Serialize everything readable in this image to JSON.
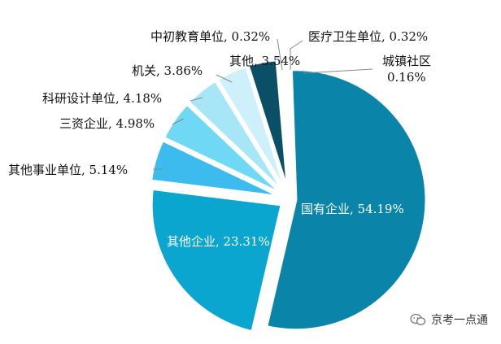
{
  "chart_data": {
    "type": "pie",
    "title": "",
    "slices": [
      {
        "label": "国有企业",
        "value": 54.19,
        "display": "国有企业, 54.19%",
        "color": "#0a84a8"
      },
      {
        "label": "其他企业",
        "value": 23.31,
        "display": "其他企业, 23.31%",
        "color": "#0aa6cf"
      },
      {
        "label": "其他事业单位",
        "value": 5.14,
        "display": "其他事业单位, 5.14%",
        "color": "#3cbbef"
      },
      {
        "label": "三资企业",
        "value": 4.98,
        "display": "三资企业, 4.98%",
        "color": "#6fd8f5"
      },
      {
        "label": "科研设计单位",
        "value": 4.18,
        "display": "科研设计单位, 4.18%",
        "color": "#a6e6f7"
      },
      {
        "label": "机关",
        "value": 3.86,
        "display": "机关, 3.86%",
        "color": "#cdf0fb"
      },
      {
        "label": "其他",
        "value": 3.54,
        "display": "其他, 3.54%",
        "color": "#0a4f66"
      },
      {
        "label": "中初教育单位",
        "value": 0.32,
        "display": "中初教育单位, 0.32%",
        "color": "#0c2f3d"
      },
      {
        "label": "医疗卫生单位",
        "value": 0.32,
        "display": "医疗卫生单位, 0.32%",
        "color": "#1d6f8a"
      },
      {
        "label": "城镇社区",
        "value": 0.16,
        "display": "城镇社区\n0.16%",
        "color": "#0a84a8"
      }
    ]
  },
  "watermark": {
    "text": "京考一点通",
    "icon": "wechat-icon"
  }
}
